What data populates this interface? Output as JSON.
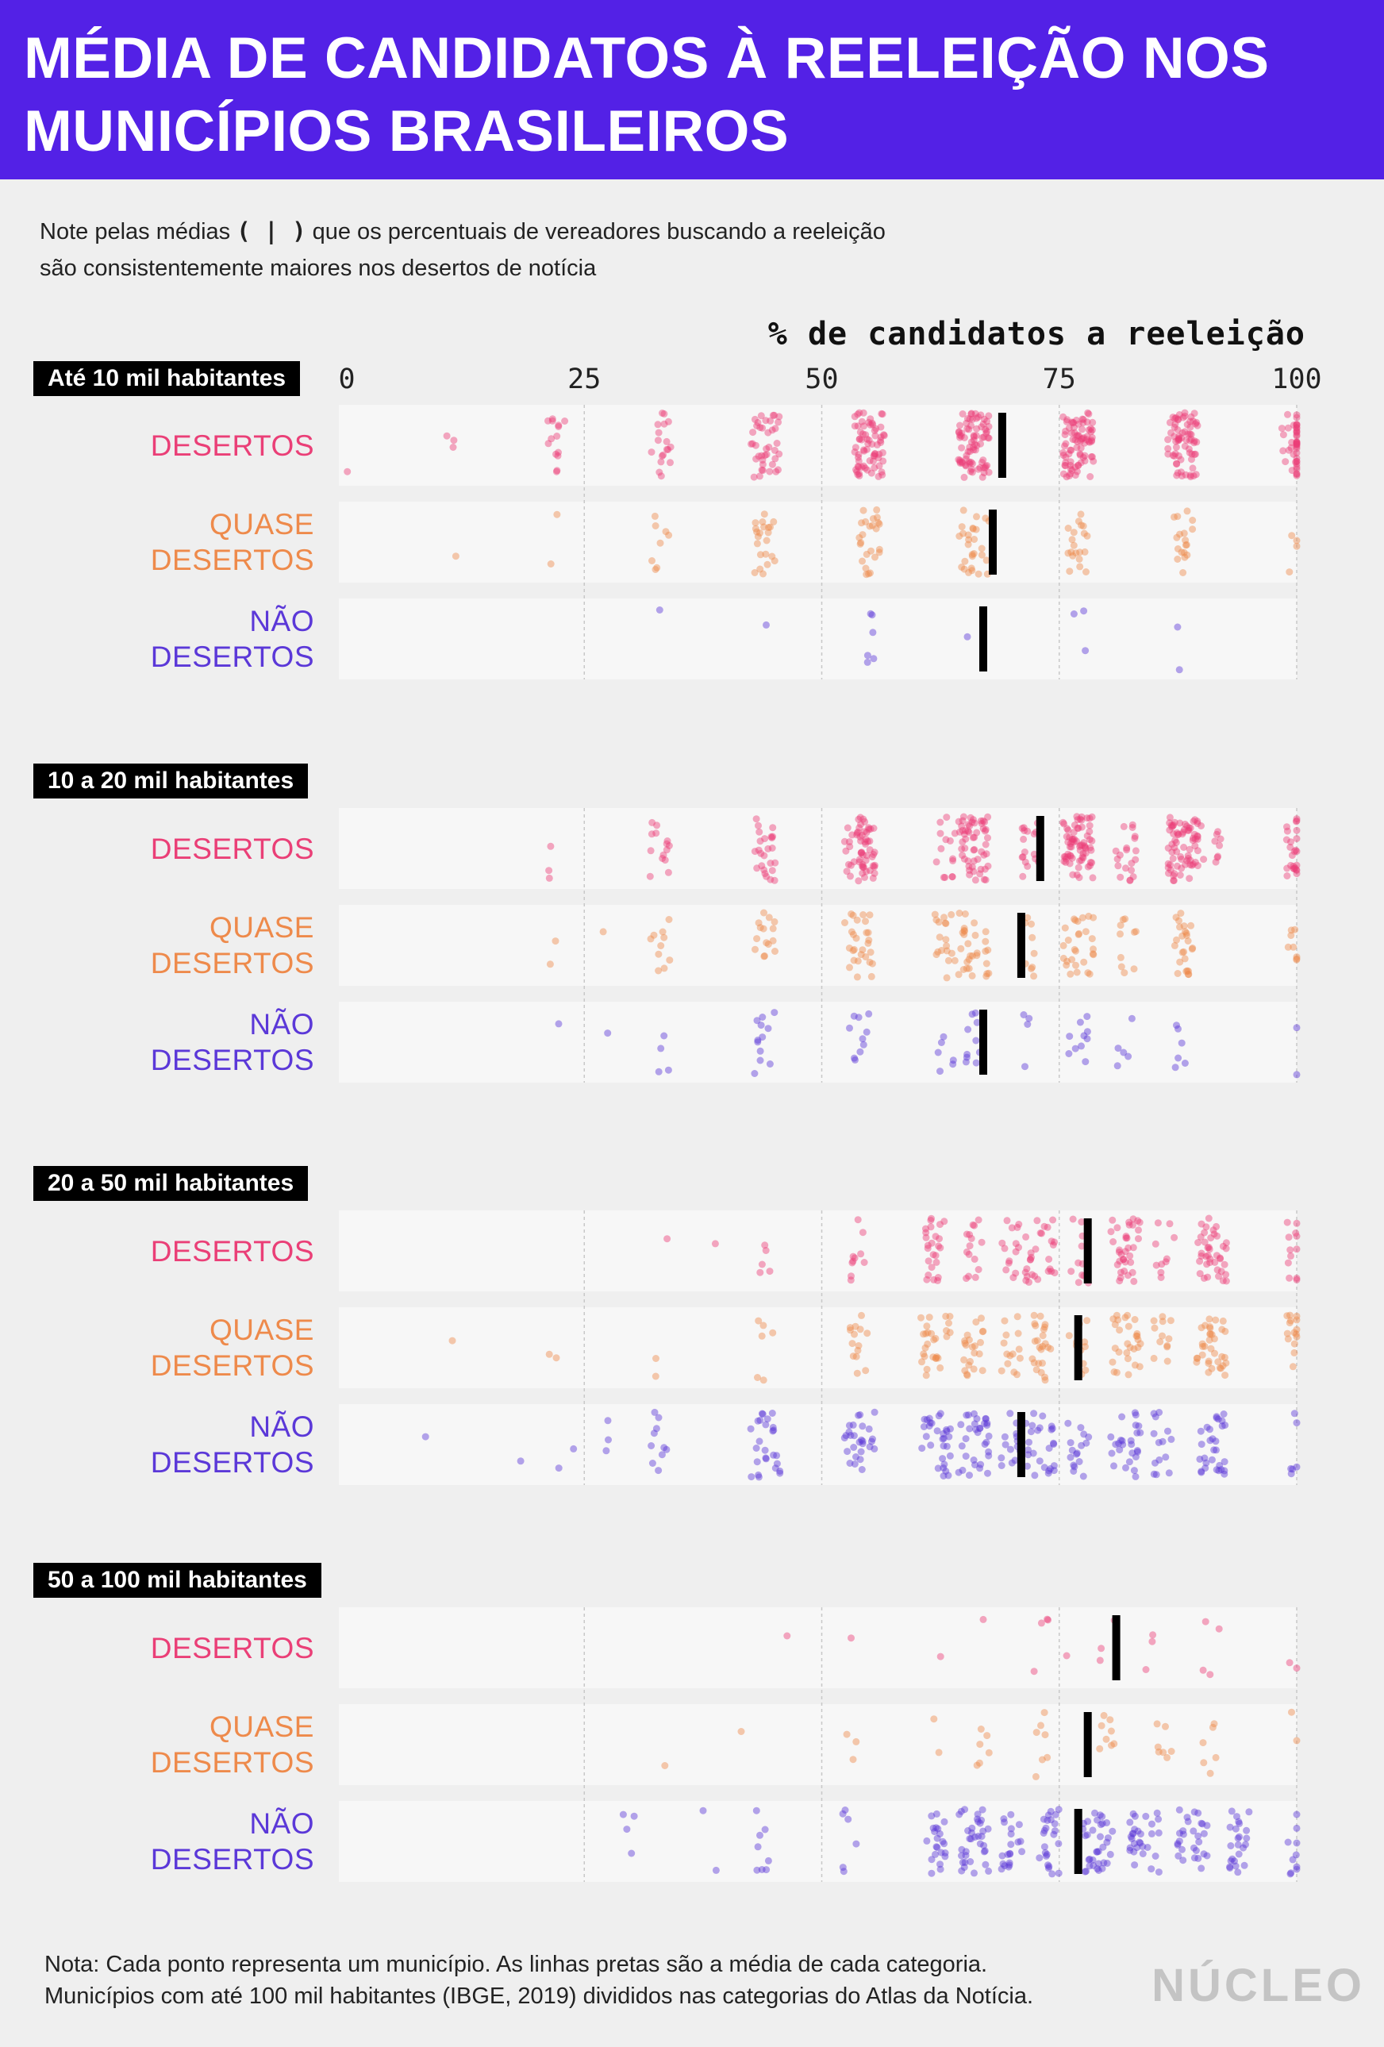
{
  "header": {
    "title": "MÉDIA DE CANDIDATOS À REELEIÇÃO NOS MUNICÍPIOS BRASILEIROS"
  },
  "subtitle": {
    "before": "Note pelas médias ",
    "symbol": "( | )",
    "after": " que os percentuais de vereadores buscando a reeleição são consistentemente maiores nos desertos de notícia"
  },
  "footnote": {
    "line1": "Nota: Cada ponto representa um município. As linhas pretas são a média de cada categoria.",
    "line2": "Municípios com até 100 mil habitantes (IBGE, 2019) divididos nas categorias do Atlas da Notícia."
  },
  "logo": "NÚCLEO",
  "colors": {
    "header_bg": "#5321e6",
    "desertos": "#ea3f77",
    "quase_desertos": "#ee8a4b",
    "nao_desertos": "#5b38d8",
    "mean_line": "#000000"
  },
  "chart_data": {
    "type": "scatter",
    "subtype": "strip plot (jittered dots) with mean markers",
    "xlabel": "% de candidatos a reeleição",
    "xlim": [
      0,
      100
    ],
    "xticks": [
      0,
      25,
      50,
      75,
      100
    ],
    "xtick_labels": [
      "0",
      "25",
      "50",
      "75",
      "100"
    ],
    "grid": "vertical dashed lines at 25, 50, 75, 100",
    "note": "Each point is one municipality; black bars mark the category mean.",
    "categories": [
      {
        "key": "desertos",
        "label_lines": [
          "DESERTOS"
        ],
        "color": "#ea3f77"
      },
      {
        "key": "quase",
        "label_lines": [
          "QUASE",
          "DESERTOS"
        ],
        "color": "#ee8a4b"
      },
      {
        "key": "nao",
        "label_lines": [
          "NÃO",
          "DESERTOS"
        ],
        "color": "#5b38d8"
      }
    ],
    "groups": [
      {
        "label": "Até 10 mil habitantes",
        "means": {
          "desertos": 69,
          "quase": 68,
          "nao": 67
        },
        "strips": {
          "desertos": [
            [
              0,
              1
            ],
            [
              11,
              3
            ],
            [
              22,
              14
            ],
            [
              33,
              18
            ],
            [
              44,
              40
            ],
            [
              55,
              70
            ],
            [
              66,
              80
            ],
            [
              77,
              80
            ],
            [
              88,
              70
            ],
            [
              100,
              45
            ]
          ],
          "quase": [
            [
              11,
              1
            ],
            [
              22,
              2
            ],
            [
              33,
              8
            ],
            [
              44,
              22
            ],
            [
              55,
              25
            ],
            [
              66,
              28
            ],
            [
              77,
              20
            ],
            [
              88,
              18
            ],
            [
              100,
              4
            ]
          ],
          "nao": [
            [
              33,
              1
            ],
            [
              44,
              1
            ],
            [
              55,
              6
            ],
            [
              66,
              1
            ],
            [
              77,
              3
            ],
            [
              88,
              2
            ]
          ]
        }
      },
      {
        "label": "10 a 20 mil habitantes",
        "means": {
          "desertos": 73,
          "quase": 71,
          "nao": 67
        },
        "strips": {
          "desertos": [
            [
              22,
              3
            ],
            [
              33,
              14
            ],
            [
              44,
              25
            ],
            [
              54,
              60
            ],
            [
              63,
              14
            ],
            [
              66,
              55
            ],
            [
              72,
              20
            ],
            [
              77,
              70
            ],
            [
              82,
              20
            ],
            [
              88,
              70
            ],
            [
              91,
              10
            ],
            [
              100,
              25
            ]
          ],
          "quase": [
            [
              22,
              2
            ],
            [
              27,
              1
            ],
            [
              33,
              10
            ],
            [
              44,
              15
            ],
            [
              54,
              28
            ],
            [
              63,
              18
            ],
            [
              66,
              30
            ],
            [
              72,
              10
            ],
            [
              77,
              28
            ],
            [
              82,
              10
            ],
            [
              88,
              25
            ],
            [
              100,
              8
            ]
          ],
          "nao": [
            [
              22,
              1
            ],
            [
              28,
              1
            ],
            [
              33,
              4
            ],
            [
              44,
              12
            ],
            [
              54,
              10
            ],
            [
              63,
              6
            ],
            [
              66,
              10
            ],
            [
              72,
              4
            ],
            [
              77,
              10
            ],
            [
              82,
              5
            ],
            [
              88,
              6
            ],
            [
              100,
              2
            ]
          ]
        }
      },
      {
        "label": "20 a 50 mil habitantes",
        "means": {
          "desertos": 78,
          "quase": 77,
          "nao": 71
        },
        "strips": {
          "desertos": [
            [
              33,
              1
            ],
            [
              38,
              1
            ],
            [
              44,
              5
            ],
            [
              54,
              10
            ],
            [
              62,
              25
            ],
            [
              66,
              15
            ],
            [
              70,
              14
            ],
            [
              73,
              28
            ],
            [
              77,
              12
            ],
            [
              82,
              35
            ],
            [
              86,
              10
            ],
            [
              91,
              40
            ],
            [
              100,
              12
            ]
          ],
          "quase": [
            [
              12,
              1
            ],
            [
              22,
              2
            ],
            [
              33,
              2
            ],
            [
              44,
              6
            ],
            [
              54,
              14
            ],
            [
              62,
              28
            ],
            [
              66,
              22
            ],
            [
              70,
              14
            ],
            [
              73,
              24
            ],
            [
              77,
              12
            ],
            [
              82,
              28
            ],
            [
              86,
              12
            ],
            [
              91,
              35
            ],
            [
              100,
              15
            ]
          ],
          "nao": [
            [
              8,
              1
            ],
            [
              19,
              1
            ],
            [
              23,
              2
            ],
            [
              28,
              3
            ],
            [
              33,
              10
            ],
            [
              44,
              26
            ],
            [
              54,
              28
            ],
            [
              62,
              30
            ],
            [
              66,
              32
            ],
            [
              70,
              16
            ],
            [
              73,
              26
            ],
            [
              77,
              16
            ],
            [
              82,
              26
            ],
            [
              86,
              14
            ],
            [
              91,
              30
            ],
            [
              100,
              6
            ]
          ]
        }
      },
      {
        "label": "50 a 100 mil habitantes",
        "means": {
          "desertos": 81,
          "quase": 78,
          "nao": 77
        },
        "strips": {
          "desertos": [
            [
              46,
              1
            ],
            [
              53,
              1
            ],
            [
              63,
              1
            ],
            [
              67,
              1
            ],
            [
              73,
              4
            ],
            [
              75,
              1
            ],
            [
              80,
              3
            ],
            [
              85,
              3
            ],
            [
              91,
              4
            ],
            [
              100,
              2
            ]
          ],
          "quase": [
            [
              33,
              1
            ],
            [
              41,
              1
            ],
            [
              53,
              3
            ],
            [
              62,
              2
            ],
            [
              67,
              6
            ],
            [
              73,
              7
            ],
            [
              80,
              8
            ],
            [
              86,
              7
            ],
            [
              91,
              6
            ],
            [
              100,
              2
            ]
          ],
          "nao": [
            [
              30,
              4
            ],
            [
              38,
              2
            ],
            [
              44,
              8
            ],
            [
              53,
              6
            ],
            [
              62,
              22
            ],
            [
              66,
              35
            ],
            [
              70,
              20
            ],
            [
              74,
              24
            ],
            [
              79,
              35
            ],
            [
              84,
              30
            ],
            [
              89,
              28
            ],
            [
              94,
              24
            ],
            [
              100,
              10
            ]
          ]
        }
      }
    ]
  }
}
